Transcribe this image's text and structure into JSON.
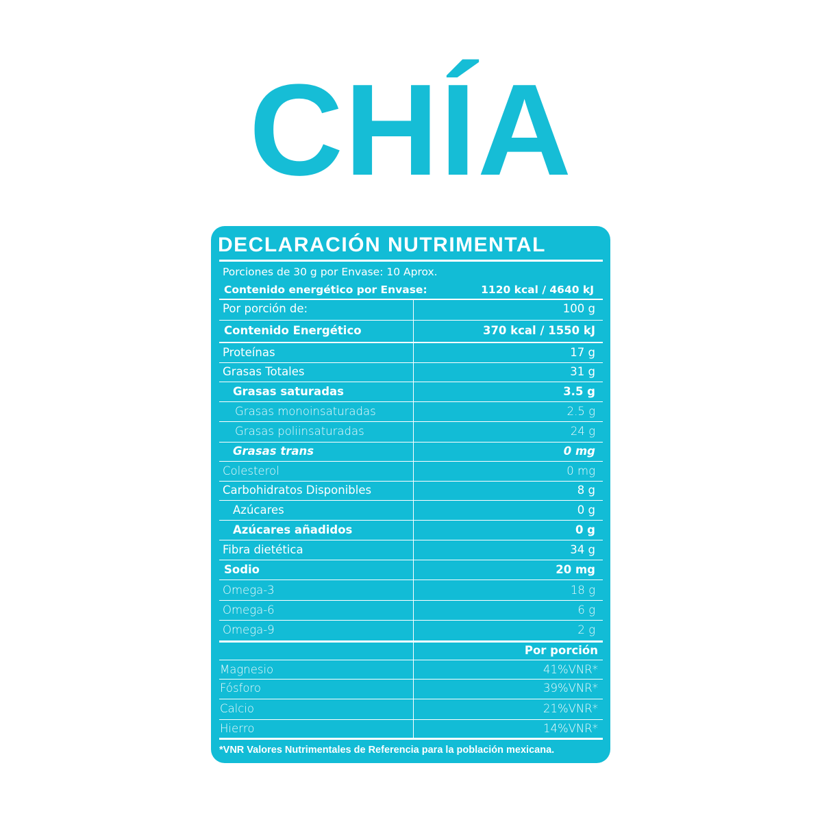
{
  "title": "CHÍA",
  "label": {
    "heading": "DECLARACIÓN NUTRIMENTAL",
    "servings": "Porciones de 30 g por Envase: 10 Aprox.",
    "package_energy": {
      "label": "Contenido energético por Envase:",
      "value": "1120 kcal / 4640 kJ"
    },
    "rows": [
      [
        "Por porción de:",
        "100 g"
      ],
      [
        "Contenido Energético",
        "370 kcal / 1550 kJ"
      ],
      [
        "Proteínas",
        "17 g"
      ],
      [
        "Grasas Totales",
        "31 g"
      ],
      [
        "Grasas saturadas",
        "3.5 g"
      ],
      [
        "Grasas monoinsaturadas",
        "2.5 g"
      ],
      [
        "Grasas poliinsaturadas",
        "24 g"
      ],
      [
        "Grasas trans",
        "0 mg"
      ],
      [
        "Colesterol",
        "0 mg"
      ],
      [
        "Carbohidratos Disponibles",
        "8 g"
      ],
      [
        "Azúcares",
        "0 g"
      ],
      [
        "Azúcares añadidos",
        "0 g"
      ],
      [
        "Fibra dietética",
        "34 g"
      ],
      [
        "Sodio",
        "20 mg"
      ],
      [
        "Omega-3",
        "18 g"
      ],
      [
        "Omega-6",
        "6 g"
      ],
      [
        "Omega-9",
        "2 g"
      ]
    ],
    "vnr_header": "Por porción",
    "vnr_rows": [
      [
        "Magnesio",
        "41%VNR*"
      ],
      [
        "Fósforo",
        "39%VNR*"
      ],
      [
        "Calcio",
        "21%VNR*"
      ],
      [
        "Hierro",
        "14%VNR*"
      ]
    ],
    "footnote": "*VNR Valores Nutrimentales de Referencia para la población mexicana."
  }
}
